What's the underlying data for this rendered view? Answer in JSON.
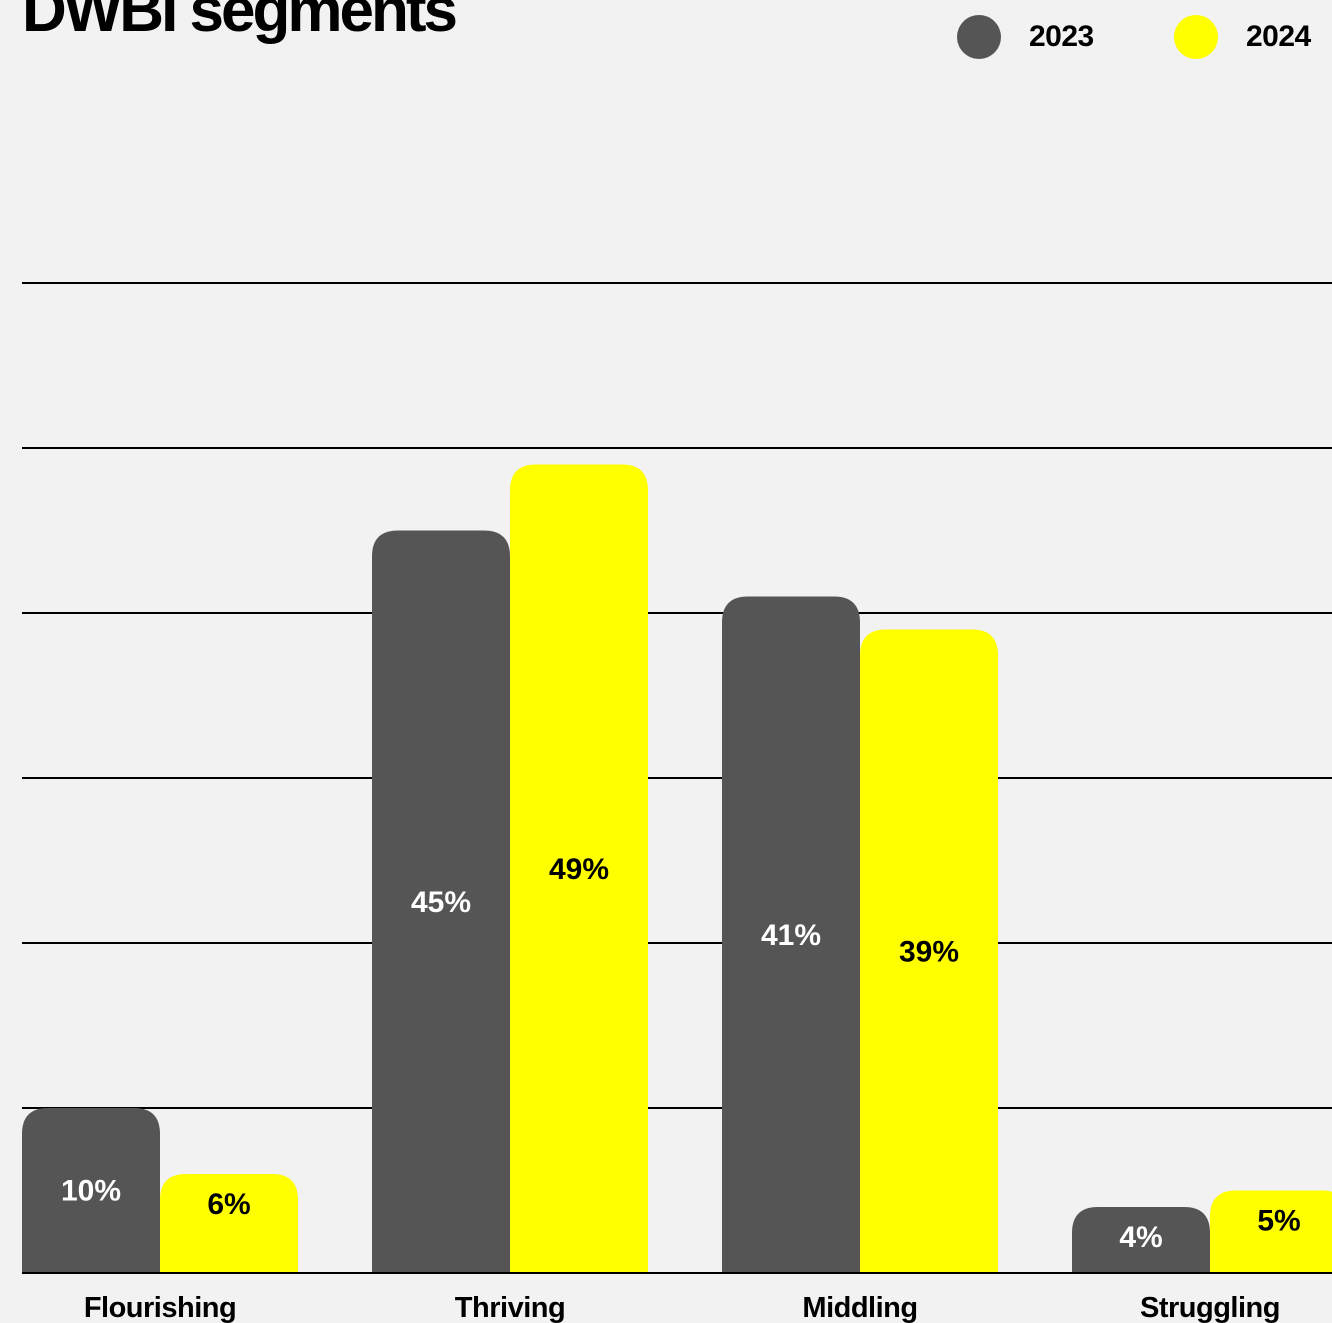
{
  "title": "DWBI segments",
  "colors": {
    "2023": "#555555",
    "2024": "#ffff00",
    "label_on_2023": "#ffffff",
    "label_on_2024": "#000000",
    "gridline": "#000000",
    "background": "#f2f2f2"
  },
  "legend": [
    {
      "name": "2023",
      "color": "#555555"
    },
    {
      "name": "2024",
      "color": "#ffff00"
    }
  ],
  "chart_data": {
    "type": "bar",
    "title": "DWBI segments",
    "categories": [
      "Flourishing",
      "Thriving",
      "Middling",
      "Struggling"
    ],
    "series": [
      {
        "name": "2023",
        "values": [
          10,
          45,
          41,
          4
        ],
        "labels": [
          "10%",
          "45%",
          "41%",
          "4%"
        ]
      },
      {
        "name": "2024",
        "values": [
          6,
          49,
          39,
          5
        ],
        "labels": [
          "6%",
          "49%",
          "39%",
          "5%"
        ]
      }
    ],
    "ylim": [
      0,
      60
    ],
    "grid": true,
    "legend_position": "top-right",
    "xlabel": "",
    "ylabel": ""
  }
}
